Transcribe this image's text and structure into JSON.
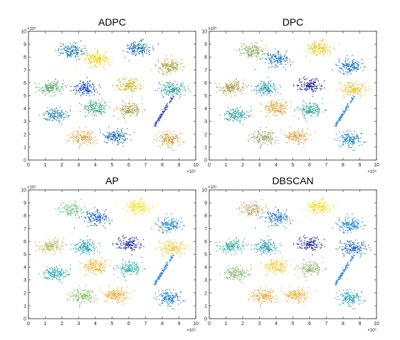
{
  "chart_data": [
    {
      "type": "scatter",
      "title": "ADPC",
      "xlim": [
        0,
        10
      ],
      "ylim": [
        0,
        10
      ],
      "x_ticks": [
        "0",
        "1",
        "2",
        "3",
        "4",
        "5",
        "6",
        "7",
        "8",
        "9",
        "10"
      ],
      "y_ticks": [
        "0",
        "1",
        "2",
        "3",
        "4",
        "5",
        "6",
        "7",
        "8",
        "9",
        "10"
      ],
      "x_exponent": "×10⁵",
      "y_exponent": "×10⁵",
      "grid": false,
      "clusters": [
        {
          "cx": 2.5,
          "cy": 8.5,
          "sx": 0.38,
          "sy": 0.28,
          "n": 150,
          "color": "#2478b8"
        },
        {
          "cx": 4.0,
          "cy": 7.8,
          "sx": 0.38,
          "sy": 0.28,
          "n": 150,
          "color": "#f0d000"
        },
        {
          "cx": 6.6,
          "cy": 8.7,
          "sx": 0.38,
          "sy": 0.28,
          "n": 150,
          "color": "#1c6ba8"
        },
        {
          "cx": 8.4,
          "cy": 7.3,
          "sx": 0.38,
          "sy": 0.28,
          "n": 150,
          "color": "#aaa63a"
        },
        {
          "cx": 1.3,
          "cy": 5.6,
          "sx": 0.38,
          "sy": 0.28,
          "n": 150,
          "color": "#62a870"
        },
        {
          "cx": 3.4,
          "cy": 5.6,
          "sx": 0.38,
          "sy": 0.28,
          "n": 150,
          "color": "#1f4ec0"
        },
        {
          "cx": 6.0,
          "cy": 5.8,
          "sx": 0.38,
          "sy": 0.28,
          "n": 150,
          "color": "#cdb828"
        },
        {
          "cx": 8.6,
          "cy": 5.5,
          "sx": 0.38,
          "sy": 0.28,
          "n": 150,
          "color": "#2e9b98"
        },
        {
          "cx": 1.6,
          "cy": 3.5,
          "sx": 0.38,
          "sy": 0.28,
          "n": 150,
          "color": "#2f8eb0"
        },
        {
          "cx": 4.0,
          "cy": 4.0,
          "sx": 0.38,
          "sy": 0.28,
          "n": 150,
          "color": "#38a880"
        },
        {
          "cx": 6.0,
          "cy": 3.9,
          "sx": 0.38,
          "sy": 0.28,
          "n": 150,
          "color": "#b0a052"
        },
        {
          "cx": 8.1,
          "cy": 3.8,
          "line": true,
          "dx": -0.55,
          "dy": -1.15,
          "n": 110,
          "color": "#2b3fc6"
        },
        {
          "cx": 3.3,
          "cy": 1.7,
          "sx": 0.38,
          "sy": 0.28,
          "n": 150,
          "color": "#d9a442"
        },
        {
          "cx": 5.2,
          "cy": 1.8,
          "sx": 0.38,
          "sy": 0.28,
          "n": 150,
          "color": "#1f6cbc"
        },
        {
          "cx": 8.4,
          "cy": 1.6,
          "sx": 0.38,
          "sy": 0.28,
          "n": 150,
          "color": "#d0a238"
        }
      ]
    },
    {
      "type": "scatter",
      "title": "DPC",
      "xlim": [
        0,
        10
      ],
      "ylim": [
        0,
        10
      ],
      "x_ticks": [
        "0",
        "1",
        "2",
        "3",
        "4",
        "5",
        "6",
        "7",
        "8",
        "9",
        "10"
      ],
      "y_ticks": [
        "0",
        "1",
        "2",
        "3",
        "4",
        "5",
        "6",
        "7",
        "8",
        "9",
        "10"
      ],
      "x_exponent": "×10⁵",
      "y_exponent": "×10⁵",
      "grid": false,
      "clusters": [
        {
          "cx": 2.5,
          "cy": 8.5,
          "sx": 0.38,
          "sy": 0.28,
          "n": 150,
          "color": "#8cae58"
        },
        {
          "cx": 4.0,
          "cy": 7.8,
          "sx": 0.38,
          "sy": 0.28,
          "n": 150,
          "color": "#2478c0"
        },
        {
          "cx": 6.6,
          "cy": 8.7,
          "sx": 0.38,
          "sy": 0.28,
          "n": 150,
          "color": "#e8c820"
        },
        {
          "cx": 8.4,
          "cy": 7.3,
          "sx": 0.38,
          "sy": 0.28,
          "n": 150,
          "color": "#1f78c4"
        },
        {
          "cx": 1.3,
          "cy": 5.6,
          "sx": 0.38,
          "sy": 0.28,
          "n": 150,
          "color": "#b29a48"
        },
        {
          "cx": 3.4,
          "cy": 5.6,
          "sx": 0.38,
          "sy": 0.28,
          "n": 150,
          "color": "#2a9fb0"
        },
        {
          "cx": 6.0,
          "cy": 5.8,
          "sx": 0.38,
          "sy": 0.28,
          "n": 150,
          "color": "#2a2e9c"
        },
        {
          "cx": 8.6,
          "cy": 5.5,
          "sx": 0.38,
          "sy": 0.28,
          "n": 150,
          "color": "#e6c22a"
        },
        {
          "cx": 1.6,
          "cy": 3.5,
          "sx": 0.38,
          "sy": 0.28,
          "n": 150,
          "color": "#2fa6a4"
        },
        {
          "cx": 4.0,
          "cy": 4.0,
          "sx": 0.38,
          "sy": 0.28,
          "n": 150,
          "color": "#e0a030"
        },
        {
          "cx": 6.0,
          "cy": 3.9,
          "sx": 0.38,
          "sy": 0.28,
          "n": 150,
          "color": "#36a890"
        },
        {
          "cx": 8.1,
          "cy": 3.8,
          "line": true,
          "dx": -0.55,
          "dy": -1.15,
          "n": 110,
          "color": "#2a86d0"
        },
        {
          "cx": 3.3,
          "cy": 1.7,
          "sx": 0.38,
          "sy": 0.28,
          "n": 150,
          "color": "#96a864"
        },
        {
          "cx": 5.2,
          "cy": 1.8,
          "sx": 0.38,
          "sy": 0.28,
          "n": 150,
          "color": "#dca448"
        },
        {
          "cx": 8.4,
          "cy": 1.6,
          "sx": 0.38,
          "sy": 0.28,
          "n": 150,
          "color": "#1f86bc"
        }
      ]
    },
    {
      "type": "scatter",
      "title": "AP",
      "xlim": [
        0,
        10
      ],
      "ylim": [
        0,
        10
      ],
      "x_ticks": [
        "0",
        "1",
        "2",
        "3",
        "4",
        "5",
        "6",
        "7",
        "8",
        "9",
        "10"
      ],
      "y_ticks": [
        "0",
        "1",
        "2",
        "3",
        "4",
        "5",
        "6",
        "7",
        "8",
        "9",
        "10"
      ],
      "x_exponent": "×10⁵",
      "y_exponent": "×10⁵",
      "grid": false,
      "clusters": [
        {
          "cx": 2.5,
          "cy": 8.5,
          "sx": 0.38,
          "sy": 0.28,
          "n": 150,
          "color": "#7ec890"
        },
        {
          "cx": 4.0,
          "cy": 7.8,
          "sx": 0.38,
          "sy": 0.28,
          "n": 150,
          "color": "#2268c8"
        },
        {
          "cx": 6.6,
          "cy": 8.7,
          "sx": 0.38,
          "sy": 0.28,
          "n": 150,
          "color": "#f2e01e"
        },
        {
          "cx": 8.4,
          "cy": 7.3,
          "sx": 0.38,
          "sy": 0.28,
          "n": 150,
          "color": "#2e8ed0"
        },
        {
          "cx": 1.3,
          "cy": 5.6,
          "sx": 0.38,
          "sy": 0.28,
          "n": 150,
          "color": "#b8bc60"
        },
        {
          "cx": 3.4,
          "cy": 5.6,
          "sx": 0.38,
          "sy": 0.28,
          "n": 150,
          "color": "#2aa0c0"
        },
        {
          "cx": 6.0,
          "cy": 5.8,
          "sx": 0.38,
          "sy": 0.28,
          "n": 150,
          "color": "#2a3a9e"
        },
        {
          "cx": 8.6,
          "cy": 5.5,
          "sx": 0.38,
          "sy": 0.28,
          "n": 150,
          "color": "#f0c830"
        },
        {
          "cx": 1.6,
          "cy": 3.5,
          "sx": 0.38,
          "sy": 0.28,
          "n": 150,
          "color": "#2aacb0"
        },
        {
          "cx": 4.0,
          "cy": 4.0,
          "sx": 0.38,
          "sy": 0.28,
          "n": 150,
          "color": "#f0b030"
        },
        {
          "cx": 6.0,
          "cy": 3.9,
          "sx": 0.38,
          "sy": 0.28,
          "n": 150,
          "color": "#30b2a8"
        },
        {
          "cx": 8.1,
          "cy": 3.8,
          "line": true,
          "dx": -0.55,
          "dy": -1.15,
          "n": 110,
          "color": "#1f7ed8"
        },
        {
          "cx": 3.3,
          "cy": 1.7,
          "sx": 0.38,
          "sy": 0.28,
          "n": 150,
          "color": "#88c068"
        },
        {
          "cx": 5.2,
          "cy": 1.8,
          "sx": 0.38,
          "sy": 0.28,
          "n": 150,
          "color": "#f0a830"
        },
        {
          "cx": 8.4,
          "cy": 1.6,
          "sx": 0.38,
          "sy": 0.28,
          "n": 150,
          "color": "#1f82d0"
        }
      ]
    },
    {
      "type": "scatter",
      "title": "DBSCAN",
      "xlim": [
        0,
        10
      ],
      "ylim": [
        0,
        10
      ],
      "x_ticks": [
        "0",
        "1",
        "2",
        "3",
        "4",
        "5",
        "6",
        "7",
        "8",
        "9",
        "10"
      ],
      "y_ticks": [
        "0",
        "1",
        "2",
        "3",
        "4",
        "5",
        "6",
        "7",
        "8",
        "9",
        "10"
      ],
      "x_exponent": "×10⁵",
      "y_exponent": "×10⁵",
      "grid": false,
      "clusters": [
        {
          "cx": 2.5,
          "cy": 8.5,
          "sx": 0.38,
          "sy": 0.28,
          "n": 150,
          "color": "#c0a870"
        },
        {
          "cx": 4.0,
          "cy": 7.8,
          "sx": 0.38,
          "sy": 0.28,
          "n": 150,
          "color": "#2a7ad0"
        },
        {
          "cx": 6.6,
          "cy": 8.7,
          "sx": 0.38,
          "sy": 0.28,
          "n": 150,
          "color": "#f2d81e"
        },
        {
          "cx": 8.4,
          "cy": 7.3,
          "sx": 0.38,
          "sy": 0.28,
          "n": 150,
          "color": "#2a8ad0"
        },
        {
          "cx": 1.3,
          "cy": 5.6,
          "sx": 0.38,
          "sy": 0.28,
          "n": 150,
          "color": "#3ab2a0"
        },
        {
          "cx": 3.4,
          "cy": 5.6,
          "sx": 0.38,
          "sy": 0.28,
          "n": 150,
          "color": "#2a9cb8"
        },
        {
          "cx": 6.0,
          "cy": 5.8,
          "sx": 0.38,
          "sy": 0.28,
          "n": 150,
          "color": "#2a3aa0"
        },
        {
          "cx": 8.6,
          "cy": 5.5,
          "sx": 0.38,
          "sy": 0.28,
          "n": 150,
          "color": "#2060c0"
        },
        {
          "cx": 1.6,
          "cy": 3.5,
          "sx": 0.38,
          "sy": 0.28,
          "n": 150,
          "color": "#8cb870"
        },
        {
          "cx": 4.0,
          "cy": 4.0,
          "sx": 0.38,
          "sy": 0.28,
          "n": 150,
          "color": "#f2c832"
        },
        {
          "cx": 6.0,
          "cy": 3.9,
          "sx": 0.38,
          "sy": 0.28,
          "n": 150,
          "color": "#98b874"
        },
        {
          "cx": 8.1,
          "cy": 3.8,
          "line": true,
          "dx": -0.55,
          "dy": -1.15,
          "n": 110,
          "color": "#2f84d6"
        },
        {
          "cx": 3.3,
          "cy": 1.7,
          "sx": 0.38,
          "sy": 0.28,
          "n": 150,
          "color": "#eaa83a"
        },
        {
          "cx": 5.2,
          "cy": 1.8,
          "sx": 0.38,
          "sy": 0.28,
          "n": 150,
          "color": "#f0b038"
        },
        {
          "cx": 8.4,
          "cy": 1.6,
          "sx": 0.38,
          "sy": 0.28,
          "n": 150,
          "color": "#2aa6b8"
        }
      ]
    }
  ]
}
